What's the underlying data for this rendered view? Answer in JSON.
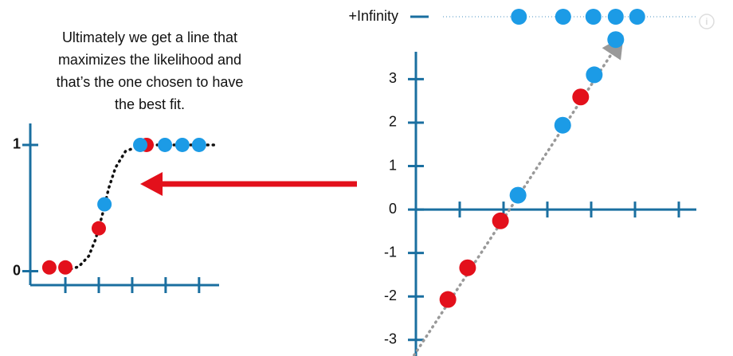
{
  "caption": [
    "Ultimately we get a line that",
    "maximizes the likelihood and",
    "that’s the one chosen to have",
    "the best fit."
  ],
  "chart_data": [
    {
      "type": "scatter",
      "xlim": [
        -0.05,
        5.6
      ],
      "ylim": [
        -0.11,
        1.17
      ],
      "xticks": [
        1,
        2,
        3,
        4,
        5
      ],
      "xtick_labels": false,
      "yticks": [
        0,
        1
      ],
      "ytick_bold": true,
      "series": [
        {
          "mode": "line",
          "style": "dotted",
          "color": "#111111",
          "x": [
            1.0,
            1.4,
            1.7,
            1.9,
            2.1,
            2.3,
            2.5,
            2.8,
            3.2,
            3.6,
            5.5
          ],
          "values": [
            0.006,
            0.036,
            0.12,
            0.25,
            0.44,
            0.66,
            0.82,
            0.95,
            0.99,
            1.0,
            1.0
          ]
        },
        {
          "mode": "points",
          "color": "#e3101b",
          "x": [
            0.52,
            1.0,
            2.0,
            3.43
          ],
          "values": [
            0.03,
            0.03,
            0.34,
            1.0
          ]
        },
        {
          "mode": "points",
          "color": "#1c9be6",
          "x": [
            2.17,
            3.24,
            3.98,
            4.5,
            5.0
          ],
          "values": [
            0.53,
            1.0,
            1.0,
            1.0,
            1.0
          ]
        }
      ]
    },
    {
      "type": "scatter",
      "xlim": [
        0,
        6.4
      ],
      "ylim": [
        -3.37,
        3.63
      ],
      "xticks": [
        1,
        2,
        3,
        4,
        5,
        6
      ],
      "xtick_labels": false,
      "yticks": [
        3,
        2,
        1,
        0,
        -1,
        -2,
        -3
      ],
      "ytick_bold": false,
      "infinity": {
        "label": "+Infinity",
        "color": "#1c9be6",
        "x": [
          2.35,
          3.36,
          4.05,
          4.56,
          5.05
        ]
      },
      "series": [
        {
          "mode": "line",
          "style": "dotted",
          "color": "#999999",
          "arrow": true,
          "x": [
            -0.04,
            4.6
          ],
          "values": [
            -3.35,
            3.79
          ]
        },
        {
          "mode": "points",
          "color": "#e3101b",
          "x": [
            0.73,
            1.18,
            1.93,
            3.76
          ],
          "values": [
            -2.07,
            -1.34,
            -0.26,
            2.59
          ]
        },
        {
          "mode": "points",
          "color": "#1c9be6",
          "x": [
            2.33,
            3.35,
            4.07,
            4.56
          ],
          "values": [
            0.33,
            1.94,
            3.1,
            3.91
          ]
        }
      ]
    }
  ]
}
